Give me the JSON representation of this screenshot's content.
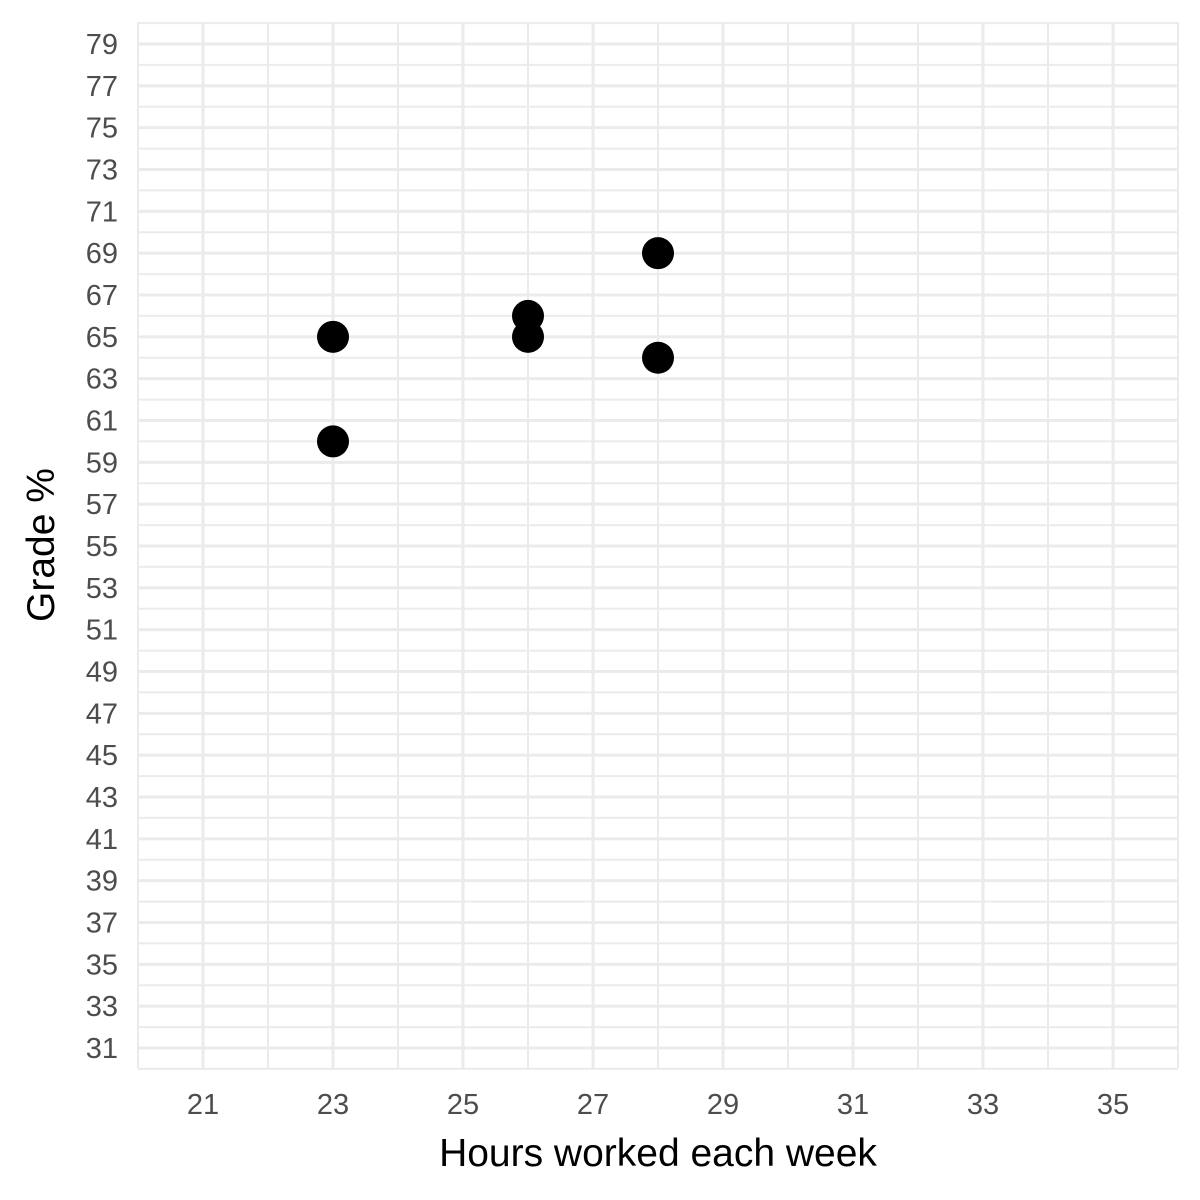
{
  "chart_data": {
    "type": "scatter",
    "title": "",
    "xlabel": "Hours worked each week",
    "ylabel": "Grade %",
    "xlim": [
      20,
      36
    ],
    "ylim": [
      30,
      80
    ],
    "x_ticks": [
      21,
      23,
      25,
      27,
      29,
      31,
      33,
      35
    ],
    "y_ticks": [
      31,
      33,
      35,
      37,
      39,
      41,
      43,
      45,
      47,
      49,
      51,
      53,
      55,
      57,
      59,
      61,
      63,
      65,
      67,
      69,
      71,
      73,
      75,
      77,
      79
    ],
    "grid": true,
    "legend": "none",
    "series": [
      {
        "points": [
          {
            "x": 23,
            "y": 65
          },
          {
            "x": 23,
            "y": 60
          },
          {
            "x": 26,
            "y": 66
          },
          {
            "x": 26,
            "y": 65
          },
          {
            "x": 28,
            "y": 69
          },
          {
            "x": 28,
            "y": 64
          }
        ]
      }
    ],
    "colors": {
      "background": "#ffffff",
      "grid": "#ebebeb",
      "point": "#000000",
      "tick_text": "#4d4d4d",
      "title_text": "#000000"
    }
  }
}
